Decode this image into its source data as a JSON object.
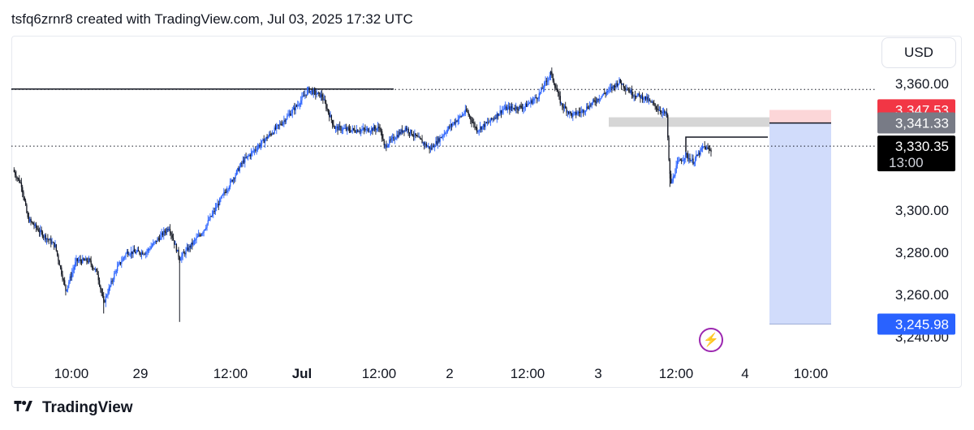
{
  "header": {
    "title": "tsfq6zrnr8 created with TradingView.com, Jul 03, 2025 17:32 UTC"
  },
  "currency": "USD",
  "footer": {
    "brand": "TradingView"
  },
  "icons": {
    "flash": "lightning-icon",
    "logo": "tradingview-logo-icon"
  },
  "colors": {
    "candle_up": "#2962ff",
    "candle_down": "#131722",
    "target_zone": "#d1dcfb",
    "stop_zone": "#fcd6d8",
    "gray_zone": "#d6d6d6",
    "badge_red": "#f23645",
    "badge_gray": "#787b86",
    "badge_black": "#000000",
    "badge_blue": "#2962ff"
  },
  "chart_data": {
    "type": "candlestick",
    "x_tick_labels": [
      "10:00",
      "29",
      "12:00",
      "Jul",
      "12:00",
      "2",
      "12:00",
      "3",
      "12:00",
      "4",
      "10:00"
    ],
    "y_tick_labels": [
      "3,360.00",
      "3,300.00",
      "3,280.00",
      "3,260.00",
      "3,240.00"
    ],
    "y_ticks": [
      3360,
      3300,
      3280,
      3260,
      3240
    ],
    "ylim": [
      3237,
      3398
    ],
    "price_path": [
      [
        0,
        3319
      ],
      [
        8,
        3312
      ],
      [
        14,
        3296
      ],
      [
        25,
        3290
      ],
      [
        40,
        3283
      ],
      [
        50,
        3262
      ],
      [
        60,
        3276
      ],
      [
        72,
        3276
      ],
      [
        80,
        3270
      ],
      [
        86,
        3256
      ],
      [
        98,
        3272
      ],
      [
        108,
        3280
      ],
      [
        126,
        3280
      ],
      [
        148,
        3292
      ],
      [
        158,
        3277
      ],
      [
        180,
        3290
      ],
      [
        198,
        3306
      ],
      [
        218,
        3323
      ],
      [
        238,
        3333
      ],
      [
        256,
        3342
      ],
      [
        270,
        3350
      ],
      [
        280,
        3357
      ],
      [
        293,
        3354
      ],
      [
        305,
        3339
      ],
      [
        320,
        3338
      ],
      [
        335,
        3338
      ],
      [
        348,
        3339
      ],
      [
        352,
        3330
      ],
      [
        372,
        3339
      ],
      [
        396,
        3329
      ],
      [
        415,
        3340
      ],
      [
        430,
        3347
      ],
      [
        440,
        3338
      ],
      [
        452,
        3342
      ],
      [
        465,
        3348
      ],
      [
        485,
        3349
      ],
      [
        498,
        3354
      ],
      [
        510,
        3365
      ],
      [
        520,
        3350
      ],
      [
        530,
        3345
      ],
      [
        540,
        3347
      ],
      [
        555,
        3353
      ],
      [
        568,
        3358
      ],
      [
        575,
        3361
      ],
      [
        588,
        3355
      ],
      [
        600,
        3353
      ],
      [
        612,
        3348
      ],
      [
        620,
        3345
      ],
      [
        622,
        3323
      ],
      [
        624,
        3312
      ],
      [
        630,
        3322
      ],
      [
        638,
        3326
      ],
      [
        645,
        3323
      ],
      [
        655,
        3330
      ],
      [
        662,
        3328
      ]
    ],
    "levels": [
      {
        "label": "3,347.53",
        "price": 3347.53,
        "color": "#f23645"
      },
      {
        "label": "3,341.33",
        "price": 3341.33,
        "color": "#787b86"
      },
      {
        "label": "3,330.35",
        "price": 3330.35,
        "color": "#000000",
        "countdown": "13:00"
      },
      {
        "label": "3,245.98",
        "price": 3245.98,
        "color": "#2962ff"
      }
    ],
    "horizontal_lines": [
      {
        "price": 3357.2,
        "style": "dotted"
      },
      {
        "price": 3330.35,
        "style": "dotted"
      }
    ],
    "zones": {
      "stop": {
        "from": 3341.3,
        "to": 3347.5
      },
      "target": {
        "from": 3246.0,
        "to": 3341.3
      },
      "gray": {
        "from": 3339.5,
        "to": 3344.0
      }
    }
  }
}
